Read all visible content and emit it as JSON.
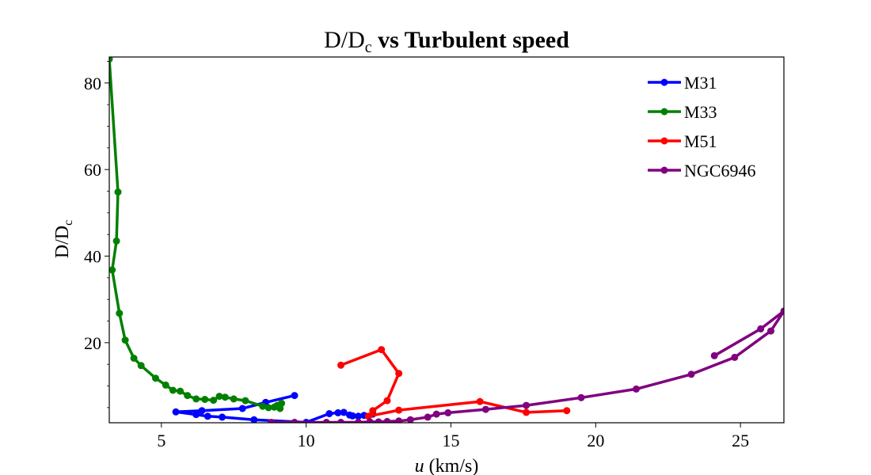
{
  "chart_data": {
    "type": "line",
    "title_prefix": "D/D",
    "title_sub": "c",
    "title_bold": "vs Turbulent speed",
    "xlabel_italic": "u",
    "xlabel_rest": " (km/s)",
    "ylabel_main": "D/D",
    "ylabel_sub": "c",
    "xlim": [
      3.2,
      26.5
    ],
    "ylim": [
      1.5,
      86
    ],
    "xticks": [
      5,
      10,
      15,
      20,
      25
    ],
    "yticks": [
      20,
      40,
      60,
      80
    ],
    "yminor_ticks": [
      5,
      10,
      15,
      25,
      30,
      35,
      45,
      50,
      55,
      65,
      70,
      75,
      85
    ],
    "grid": false,
    "legend_position": "top-right",
    "series": [
      {
        "name": "M31",
        "color": "#0000ff",
        "x": [
          9.6,
          8.6,
          7.8,
          6.4,
          5.5,
          6.2,
          6.6,
          7.1,
          8.2,
          10.0,
          10.8,
          11.1,
          11.3,
          11.5,
          11.6,
          11.8,
          12.0,
          12.3
        ],
        "y": [
          7.8,
          6.2,
          4.8,
          4.3,
          4.0,
          3.4,
          3.0,
          2.8,
          2.2,
          1.6,
          3.6,
          3.8,
          3.9,
          3.3,
          3.1,
          3.0,
          3.2,
          3.5
        ]
      },
      {
        "name": "M33",
        "color": "#008000",
        "x": [
          3.2,
          3.5,
          3.45,
          3.3,
          3.55,
          3.75,
          4.05,
          4.3,
          4.8,
          5.15,
          5.4,
          5.65,
          5.9,
          6.2,
          6.5,
          6.8,
          7.0,
          7.2,
          7.5,
          7.9,
          8.5,
          8.7,
          8.9,
          9.1,
          9.15,
          9.0
        ],
        "y": [
          85.5,
          54.8,
          43.5,
          36.8,
          26.8,
          20.6,
          16.4,
          14.7,
          11.8,
          10.2,
          9.0,
          8.8,
          7.8,
          7.0,
          6.9,
          6.7,
          7.6,
          7.4,
          7.0,
          6.6,
          5.3,
          5.0,
          5.1,
          4.8,
          6.0,
          5.5
        ]
      },
      {
        "name": "M51",
        "color": "#ff0000",
        "x": [
          11.2,
          12.6,
          13.2,
          12.8,
          12.3,
          12.15,
          13.2,
          16.0,
          17.6,
          19.0
        ],
        "y": [
          14.8,
          18.4,
          12.9,
          6.6,
          4.3,
          3.0,
          4.4,
          6.4,
          3.9,
          4.3
        ]
      },
      {
        "name": "NGC6946",
        "color": "#800080",
        "x": [
          24.1,
          25.7,
          26.5,
          26.05,
          24.8,
          23.3,
          21.4,
          19.5,
          17.6,
          16.2,
          14.9,
          14.5,
          14.2,
          13.6,
          13.2,
          12.8,
          12.5,
          12.2,
          11.8,
          11.2,
          10.7,
          9.6,
          8.8
        ],
        "y": [
          17.0,
          23.2,
          27.3,
          22.7,
          16.6,
          12.7,
          9.3,
          7.3,
          5.5,
          4.6,
          3.8,
          3.5,
          2.8,
          2.2,
          1.9,
          1.8,
          1.7,
          1.7,
          1.6,
          1.6,
          1.6,
          1.6,
          1.6
        ]
      }
    ]
  }
}
